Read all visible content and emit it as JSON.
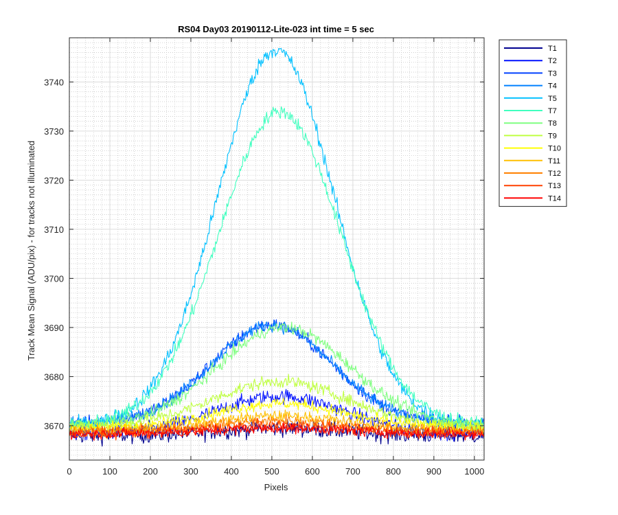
{
  "chart_data": {
    "type": "line",
    "title": "RS04 Day03 20190112-Lite-023 int time = 5 sec",
    "xlabel": "Pixels",
    "ylabel": "Track Mean Signal (ADU/pix) - for tracks not illuminated",
    "xlim": [
      0,
      1024
    ],
    "ylim": [
      3663,
      3749
    ],
    "xticks": [
      0,
      100,
      200,
      300,
      400,
      500,
      600,
      700,
      800,
      900,
      1000
    ],
    "yticks": [
      3670,
      3680,
      3690,
      3700,
      3710,
      3720,
      3730,
      3740
    ],
    "grid": true,
    "minor_grid": true,
    "legend_position": "outside-top-right",
    "series": [
      {
        "name": "T1",
        "color": "#00008F",
        "center": 520,
        "width": 210,
        "base": 3668.0,
        "peak": 3669.5,
        "noise": 1.6
      },
      {
        "name": "T2",
        "color": "#0010FF",
        "center": 520,
        "width": 220,
        "base": 3668.5,
        "peak": 3676.0,
        "noise": 1.4
      },
      {
        "name": "T3",
        "color": "#0040FF",
        "center": 500,
        "width": 210,
        "base": 3670.5,
        "peak": 3690.5,
        "noise": 1.3
      },
      {
        "name": "T4",
        "color": "#0080FF",
        "center": 500,
        "width": 210,
        "base": 3670.5,
        "peak": 3690.5,
        "noise": 1.2
      },
      {
        "name": "T5",
        "color": "#00C0FF",
        "center": 510,
        "width": 205,
        "base": 3670.0,
        "peak": 3746.5,
        "noise": 1.4
      },
      {
        "name": "T7",
        "color": "#40FFBF",
        "center": 520,
        "width": 215,
        "base": 3670.0,
        "peak": 3734.0,
        "noise": 1.3
      },
      {
        "name": "T8",
        "color": "#7FFF80",
        "center": 530,
        "width": 230,
        "base": 3670.0,
        "peak": 3690.0,
        "noise": 1.2
      },
      {
        "name": "T9",
        "color": "#BFFF40",
        "center": 520,
        "width": 230,
        "base": 3670.0,
        "peak": 3679.0,
        "noise": 1.2
      },
      {
        "name": "T10",
        "color": "#FFFF00",
        "center": 520,
        "width": 230,
        "base": 3669.5,
        "peak": 3674.5,
        "noise": 1.1
      },
      {
        "name": "T11",
        "color": "#FFBF00",
        "center": 520,
        "width": 230,
        "base": 3669.0,
        "peak": 3672.0,
        "noise": 1.1
      },
      {
        "name": "T12",
        "color": "#FF8000",
        "center": 520,
        "width": 230,
        "base": 3668.8,
        "peak": 3671.0,
        "noise": 1.1
      },
      {
        "name": "T13",
        "color": "#FF4000",
        "center": 520,
        "width": 230,
        "base": 3668.5,
        "peak": 3670.0,
        "noise": 1.1
      },
      {
        "name": "T14",
        "color": "#FF0000",
        "center": 520,
        "width": 230,
        "base": 3668.3,
        "peak": 3669.5,
        "noise": 1.0
      }
    ]
  }
}
